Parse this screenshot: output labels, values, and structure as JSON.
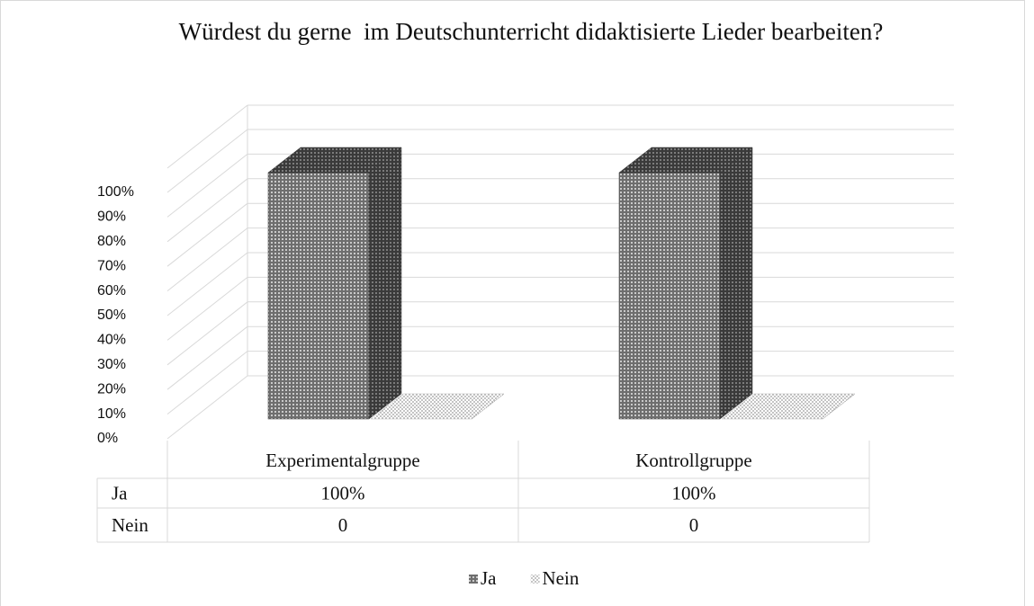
{
  "chart_data": {
    "type": "bar3d",
    "title": "Würdest du gerne  im Deutschunterricht didaktisierte Lieder bearbeiten?",
    "categories": [
      "Experimentalgruppe",
      "Kontrollgruppe"
    ],
    "series": [
      {
        "name": "Ja",
        "color": "#7f7f7f",
        "values": [
          100,
          100
        ],
        "value_labels": [
          "100%",
          "100%"
        ]
      },
      {
        "name": "Nein",
        "color": "#d0d0d0",
        "values": [
          0,
          0
        ],
        "value_labels": [
          "0",
          "0"
        ]
      }
    ],
    "ylim": [
      0,
      100
    ],
    "yticks": [
      {
        "value": 0,
        "label": "0%"
      },
      {
        "value": 10,
        "label": "10%"
      },
      {
        "value": 20,
        "label": "20%"
      },
      {
        "value": 30,
        "label": "30%"
      },
      {
        "value": 40,
        "label": "40%"
      },
      {
        "value": 50,
        "label": "50%"
      },
      {
        "value": 60,
        "label": "60%"
      },
      {
        "value": 70,
        "label": "70%"
      },
      {
        "value": 80,
        "label": "80%"
      },
      {
        "value": 90,
        "label": "90%"
      },
      {
        "value": 100,
        "label": "100%"
      }
    ],
    "grid": true,
    "legend": "bottom"
  }
}
